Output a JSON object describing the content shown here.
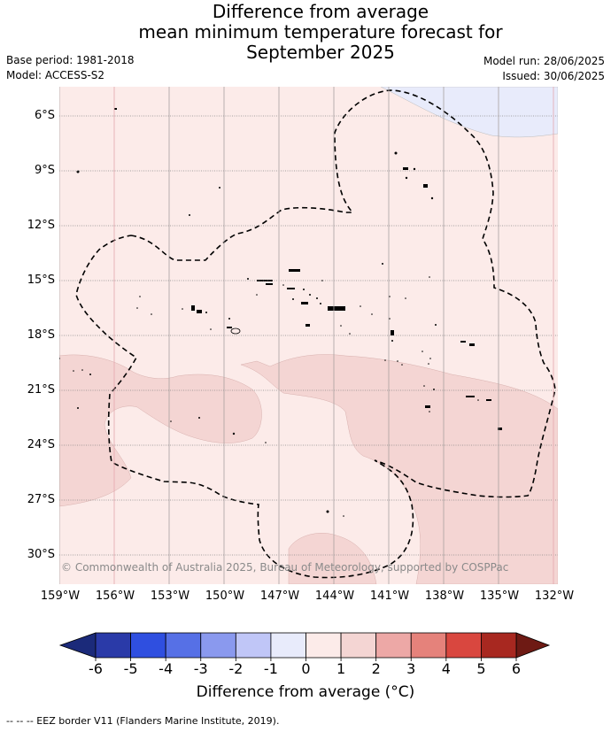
{
  "title": {
    "line1": "Difference from average",
    "line2": "mean minimum temperature forecast for",
    "line3": "September 2025"
  },
  "meta": {
    "base_period": "Base period: 1981-2018",
    "model": "Model: ACCESS-S2",
    "model_run": "Model run: 28/06/2025",
    "issued": "Issued: 30/06/2025"
  },
  "map": {
    "lat_labels": [
      "6°S",
      "9°S",
      "12°S",
      "15°S",
      "18°S",
      "21°S",
      "24°S",
      "27°S",
      "30°S"
    ],
    "lon_labels": [
      "159°W",
      "156°W",
      "153°W",
      "150°W",
      "147°W",
      "144°W",
      "141°W",
      "138°W",
      "135°W",
      "132°W"
    ],
    "copyright": "© Commonwealth of Australia 2025, Bureau of Meteorology, supported by COSPPac",
    "colors": {
      "anom_0_1": "#fcebe9",
      "anom_1_2": "#f4d5d3",
      "anom_m1_0": "#e8ebfb",
      "grid": "#888888",
      "eez": "#000000"
    }
  },
  "colorbar": {
    "ticks": [
      "-6",
      "-5",
      "-4",
      "-3",
      "-2",
      "-1",
      "0",
      "1",
      "2",
      "3",
      "4",
      "5",
      "6"
    ],
    "colors": [
      "#2a3aa8",
      "#2f4fe0",
      "#5670e6",
      "#8a99ee",
      "#c0c6f7",
      "#e8ebfb",
      "#fcebe9",
      "#f4d5d3",
      "#eda8a6",
      "#e5827b",
      "#d9473f",
      "#a82820"
    ],
    "under_color": "#1b2a7a",
    "over_color": "#6e1a14",
    "label": "Difference from average (°C)"
  },
  "footnote": "-- -- -- EEZ border V11 (Flanders Marine Institute, 2019)."
}
